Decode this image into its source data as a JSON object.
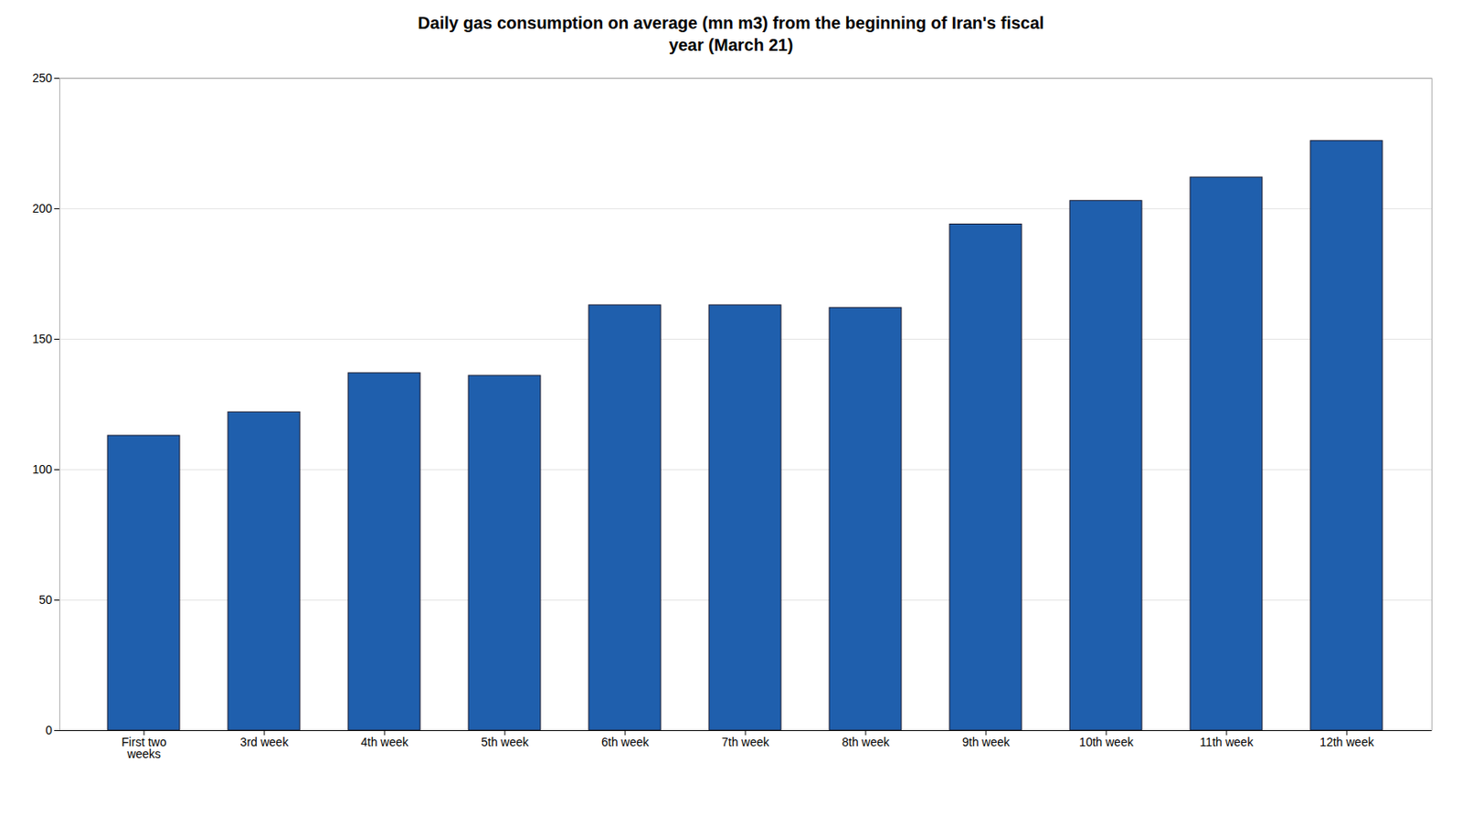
{
  "chart_data": {
    "type": "bar",
    "title": "Daily gas consumption on average (mn m3) from the beginning of Iran's fiscal\nyear (March 21)",
    "categories": [
      "First two\nweeks",
      "3rd week",
      "4th week",
      "5th week",
      "6th week",
      "7th week",
      "8th week",
      "9th week",
      "10th week",
      "11th week",
      "12th week"
    ],
    "values": [
      113,
      122,
      137,
      136,
      163,
      163,
      162,
      194,
      203,
      212,
      226
    ],
    "color": "#1F5FAD",
    "ylim": [
      0,
      250
    ],
    "yticks": [
      0,
      50,
      100,
      150,
      200,
      250
    ],
    "grid": true
  }
}
